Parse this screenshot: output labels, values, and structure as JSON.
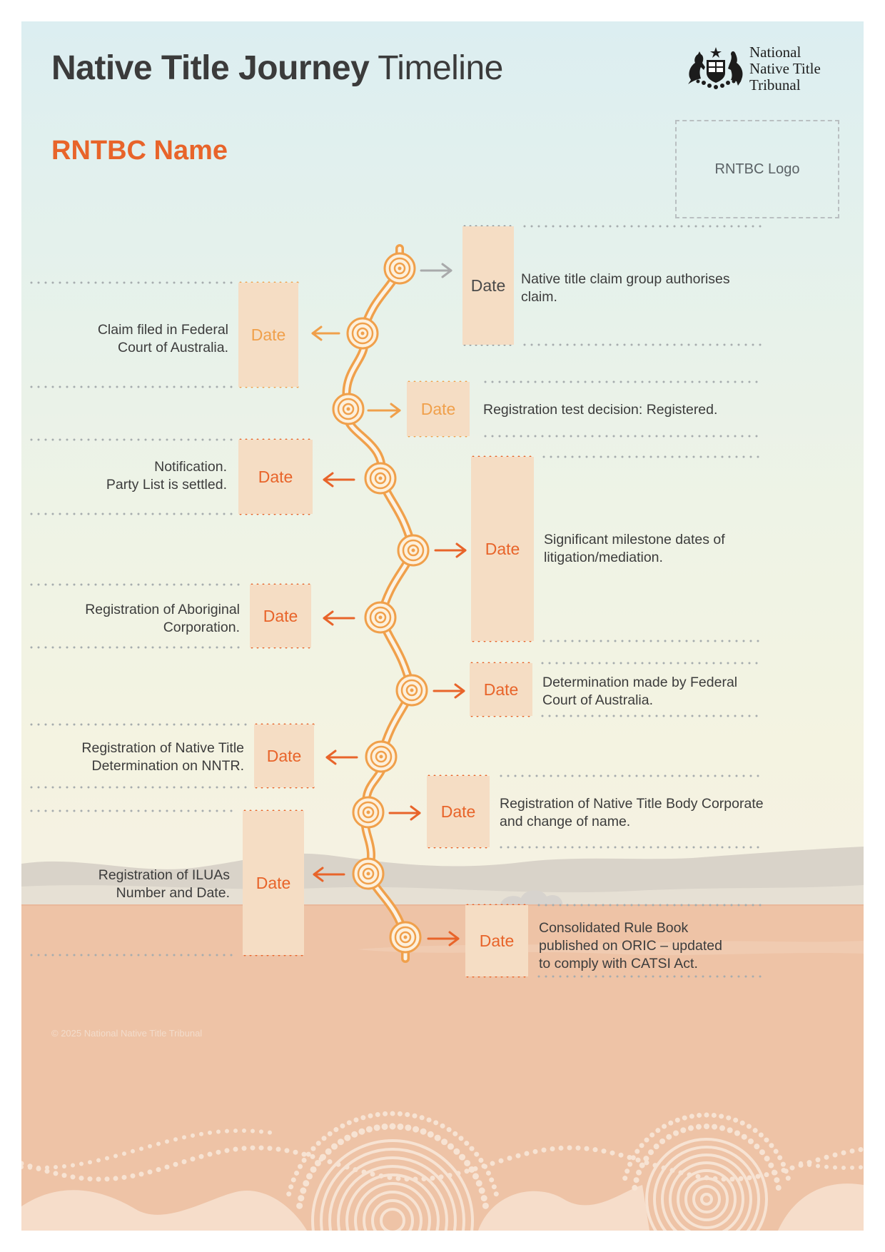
{
  "header": {
    "title_bold": "Native Title Journey",
    "title_regular": "Timeline",
    "rntbc_name": "RNTBC Name",
    "org_lines": [
      "National",
      "Native Title",
      "Tribunal"
    ],
    "logo_placeholder": "RNTBC Logo"
  },
  "colors": {
    "accent_orange": "#e8642a",
    "light_orange": "#f0a04b",
    "date_box_fill": "#f5ddc4",
    "grey_arrow": "#a9aaab",
    "title_text": "#3b3b3b"
  },
  "milestones": [
    {
      "date": "Date",
      "side": "right",
      "lines": [
        "Native title claim group authorises",
        "claim."
      ]
    },
    {
      "date": "Date",
      "side": "left",
      "lines": [
        "Claim filed in Federal",
        "Court of Australia."
      ]
    },
    {
      "date": "Date",
      "side": "right",
      "lines": [
        "Registration test decision: Registered."
      ]
    },
    {
      "date": "Date",
      "side": "left",
      "lines": [
        "Notification.",
        "Party List is settled."
      ]
    },
    {
      "date": "Date",
      "side": "right",
      "lines": [
        "Significant milestone dates of",
        "litigation/mediation."
      ]
    },
    {
      "date": "Date",
      "side": "left",
      "lines": [
        "Registration of Aboriginal",
        "Corporation."
      ]
    },
    {
      "date": "Date",
      "side": "right",
      "lines": [
        "Determination made by Federal",
        "Court of Australia."
      ]
    },
    {
      "date": "Date",
      "side": "left",
      "lines": [
        "Registration of Native Title",
        "Determination on NNTR."
      ]
    },
    {
      "date": "Date",
      "side": "right",
      "lines": [
        "Registration of Native Title Body Corporate",
        "and change of name."
      ]
    },
    {
      "date": "Date",
      "side": "left",
      "lines": [
        "Registration of ILUAs",
        "Number and Date."
      ]
    },
    {
      "date": "Date",
      "side": "right",
      "lines": [
        "Consolidated Rule Book",
        "published on ORIC – updated",
        "to comply with CATSI Act."
      ]
    }
  ],
  "footer": {
    "copyright": "© 2025 National Native Title Tribunal"
  }
}
